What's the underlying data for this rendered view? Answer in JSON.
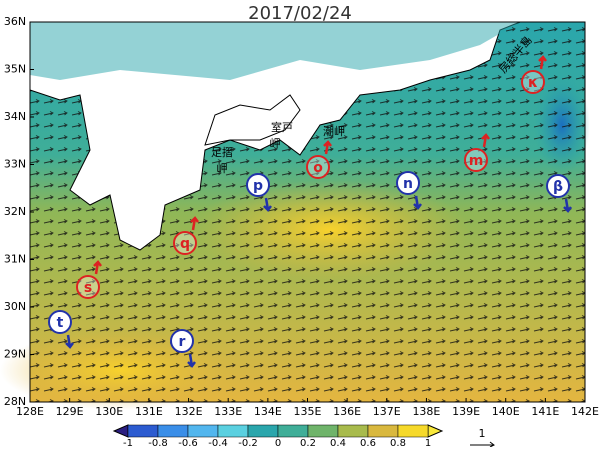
{
  "title": "2017/02/24",
  "lat_labels": [
    "36N",
    "35N",
    "34N",
    "33N",
    "32N",
    "31N",
    "30N",
    "29N",
    "28N"
  ],
  "lon_labels": [
    "128E",
    "129E",
    "130E",
    "131E",
    "132E",
    "133E",
    "134E",
    "135E",
    "136E",
    "137E",
    "138E",
    "139E",
    "140E",
    "141E",
    "142E"
  ],
  "places": [
    "足摺",
    "岬",
    "室戸",
    "岬",
    "潮岬",
    "房総半島"
  ],
  "markers": [
    {
      "label": "p",
      "color": "#2233aa"
    },
    {
      "label": "o",
      "color": "#dd2222"
    },
    {
      "label": "n",
      "color": "#2233aa"
    },
    {
      "label": "m",
      "color": "#dd2222"
    },
    {
      "label": "κ",
      "color": "#dd2222"
    },
    {
      "label": "β",
      "color": "#2233aa"
    },
    {
      "label": "q",
      "color": "#dd2222"
    },
    {
      "label": "s",
      "color": "#dd2222"
    },
    {
      "label": "t",
      "color": "#2233aa"
    },
    {
      "label": "r",
      "color": "#2233aa"
    }
  ],
  "colorbar": {
    "ticks": [
      -1,
      -0.8,
      -0.6,
      -0.4,
      -0.2,
      0,
      0.2,
      0.4,
      0.6,
      0.8,
      1
    ]
  },
  "vector_scale": "1"
}
